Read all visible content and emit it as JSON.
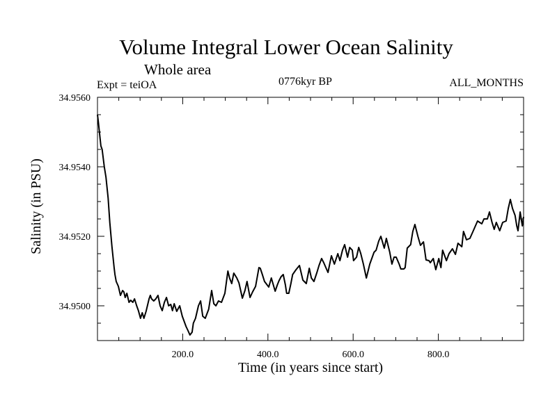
{
  "chart_data": {
    "type": "line",
    "title": "Volume Integral Lower Ocean Salinity",
    "subtitle": "Whole area",
    "annotations": {
      "left": "Expt = teiOA",
      "center": "0776kyr BP",
      "right": "ALL_MONTHS"
    },
    "xlabel": "Time (in years since start)",
    "ylabel": "Salinity (in PSU)",
    "xlim": [
      0,
      1000
    ],
    "ylim": [
      34.949,
      34.956
    ],
    "xticks": [
      200,
      400,
      600,
      800
    ],
    "xtick_labels": [
      "200.0",
      "400.0",
      "600.0",
      "800.0"
    ],
    "x_minor_step": 50,
    "yticks": [
      34.95,
      34.952,
      34.954,
      34.956
    ],
    "ytick_labels": [
      "34.9500",
      "34.9520",
      "34.9540",
      "34.9560"
    ],
    "y_minor_step": 0.0005,
    "grid": false,
    "legend": "none",
    "line_color": "#000000",
    "series": [
      {
        "name": "Salinity",
        "x": [
          0,
          2,
          8,
          11,
          16,
          20,
          25,
          29,
          34,
          39,
          41,
          44,
          49,
          54,
          59,
          62,
          65,
          69,
          74,
          78,
          83,
          87,
          92,
          96,
          101,
          105,
          109,
          114,
          121,
          124,
          127,
          132,
          137,
          142,
          147,
          152,
          157,
          162,
          167,
          172,
          176,
          180,
          186,
          193,
          199,
          208,
          212,
          217,
          222,
          225,
          230,
          237,
          242,
          247,
          253,
          261,
          268,
          273,
          278,
          284,
          291,
          299,
          306,
          310,
          315,
          320,
          327,
          332,
          340,
          346,
          351,
          358,
          364,
          371,
          379,
          382,
          387,
          392,
          402,
          408,
          417,
          422,
          426,
          431,
          436,
          441,
          444,
          449,
          454,
          458,
          466,
          474,
          482,
          490,
          497,
          502,
          508,
          515,
          520,
          526,
          531,
          536,
          541,
          549,
          556,
          564,
          569,
          575,
          580,
          587,
          592,
          598,
          601,
          608,
          613,
          618,
          624,
          631,
          639,
          649,
          654,
          660,
          665,
          673,
          678,
          686,
          691,
          696,
          701,
          708,
          712,
          719,
          722,
          727,
          735,
          740,
          745,
          752,
          758,
          765,
          771,
          778,
          781,
          788,
          794,
          801,
          806,
          810,
          819,
          825,
          833,
          840,
          846,
          855,
          859,
          866,
          874,
          882,
          892,
          902,
          907,
          915,
          920,
          926,
          931,
          936,
          944,
          951,
          959,
          964,
          969,
          974,
          980,
          984,
          987,
          992,
          997,
          1000
        ],
        "values": [
          34.9555,
          34.9553,
          34.9546,
          34.9545,
          34.954,
          34.9537,
          34.9531,
          34.9524,
          34.9517,
          34.9511,
          34.9509,
          34.9507,
          34.95056,
          34.9503,
          34.95044,
          34.9504,
          34.95024,
          34.95036,
          34.9501,
          34.95016,
          34.9501,
          34.9502,
          34.95,
          34.94986,
          34.94964,
          34.9498,
          34.94964,
          34.94984,
          34.9502,
          34.9503,
          34.9502,
          34.95014,
          34.9502,
          34.9503,
          34.95,
          34.94986,
          34.9501,
          34.95024,
          34.95,
          34.95004,
          34.94986,
          34.95006,
          34.94984,
          34.95,
          34.9497,
          34.9494,
          34.9493,
          34.94916,
          34.94924,
          34.9495,
          34.94964,
          34.95,
          34.95014,
          34.9497,
          34.94964,
          34.9499,
          34.95044,
          34.95006,
          34.95,
          34.95014,
          34.9501,
          34.95036,
          34.951,
          34.9508,
          34.95064,
          34.95094,
          34.9508,
          34.95066,
          34.95022,
          34.95044,
          34.9507,
          34.95024,
          34.9504,
          34.95056,
          34.9511,
          34.95108,
          34.9509,
          34.9507,
          34.95054,
          34.9508,
          34.95042,
          34.9506,
          34.95072,
          34.95084,
          34.9509,
          34.9506,
          34.95036,
          34.95036,
          34.95064,
          34.9509,
          34.95104,
          34.95116,
          34.95074,
          34.95064,
          34.95108,
          34.9508,
          34.9507,
          34.95096,
          34.95116,
          34.95136,
          34.95124,
          34.9511,
          34.95096,
          34.95144,
          34.9512,
          34.9515,
          34.9513,
          34.9516,
          34.95176,
          34.9514,
          34.95168,
          34.9516,
          34.9513,
          34.9514,
          34.95168,
          34.9515,
          34.9512,
          34.9508,
          34.9512,
          34.95154,
          34.9516,
          34.95186,
          34.952,
          34.95166,
          34.95194,
          34.95154,
          34.9512,
          34.9514,
          34.9514,
          34.9512,
          34.95106,
          34.95106,
          34.9511,
          34.95166,
          34.95176,
          34.95214,
          34.95234,
          34.952,
          34.95174,
          34.95184,
          34.95132,
          34.9513,
          34.95124,
          34.95136,
          34.95104,
          34.95136,
          34.9511,
          34.9516,
          34.9513,
          34.9515,
          34.95164,
          34.95148,
          34.9518,
          34.9517,
          34.95214,
          34.9519,
          34.95194,
          34.95216,
          34.95244,
          34.95236,
          34.9525,
          34.9525,
          34.9527,
          34.9524,
          34.9522,
          34.9524,
          34.95216,
          34.9524,
          34.95244,
          34.9528,
          34.95306,
          34.9528,
          34.9526,
          34.9523,
          34.95216,
          34.9527,
          34.9523,
          34.95256
        ]
      }
    ]
  }
}
